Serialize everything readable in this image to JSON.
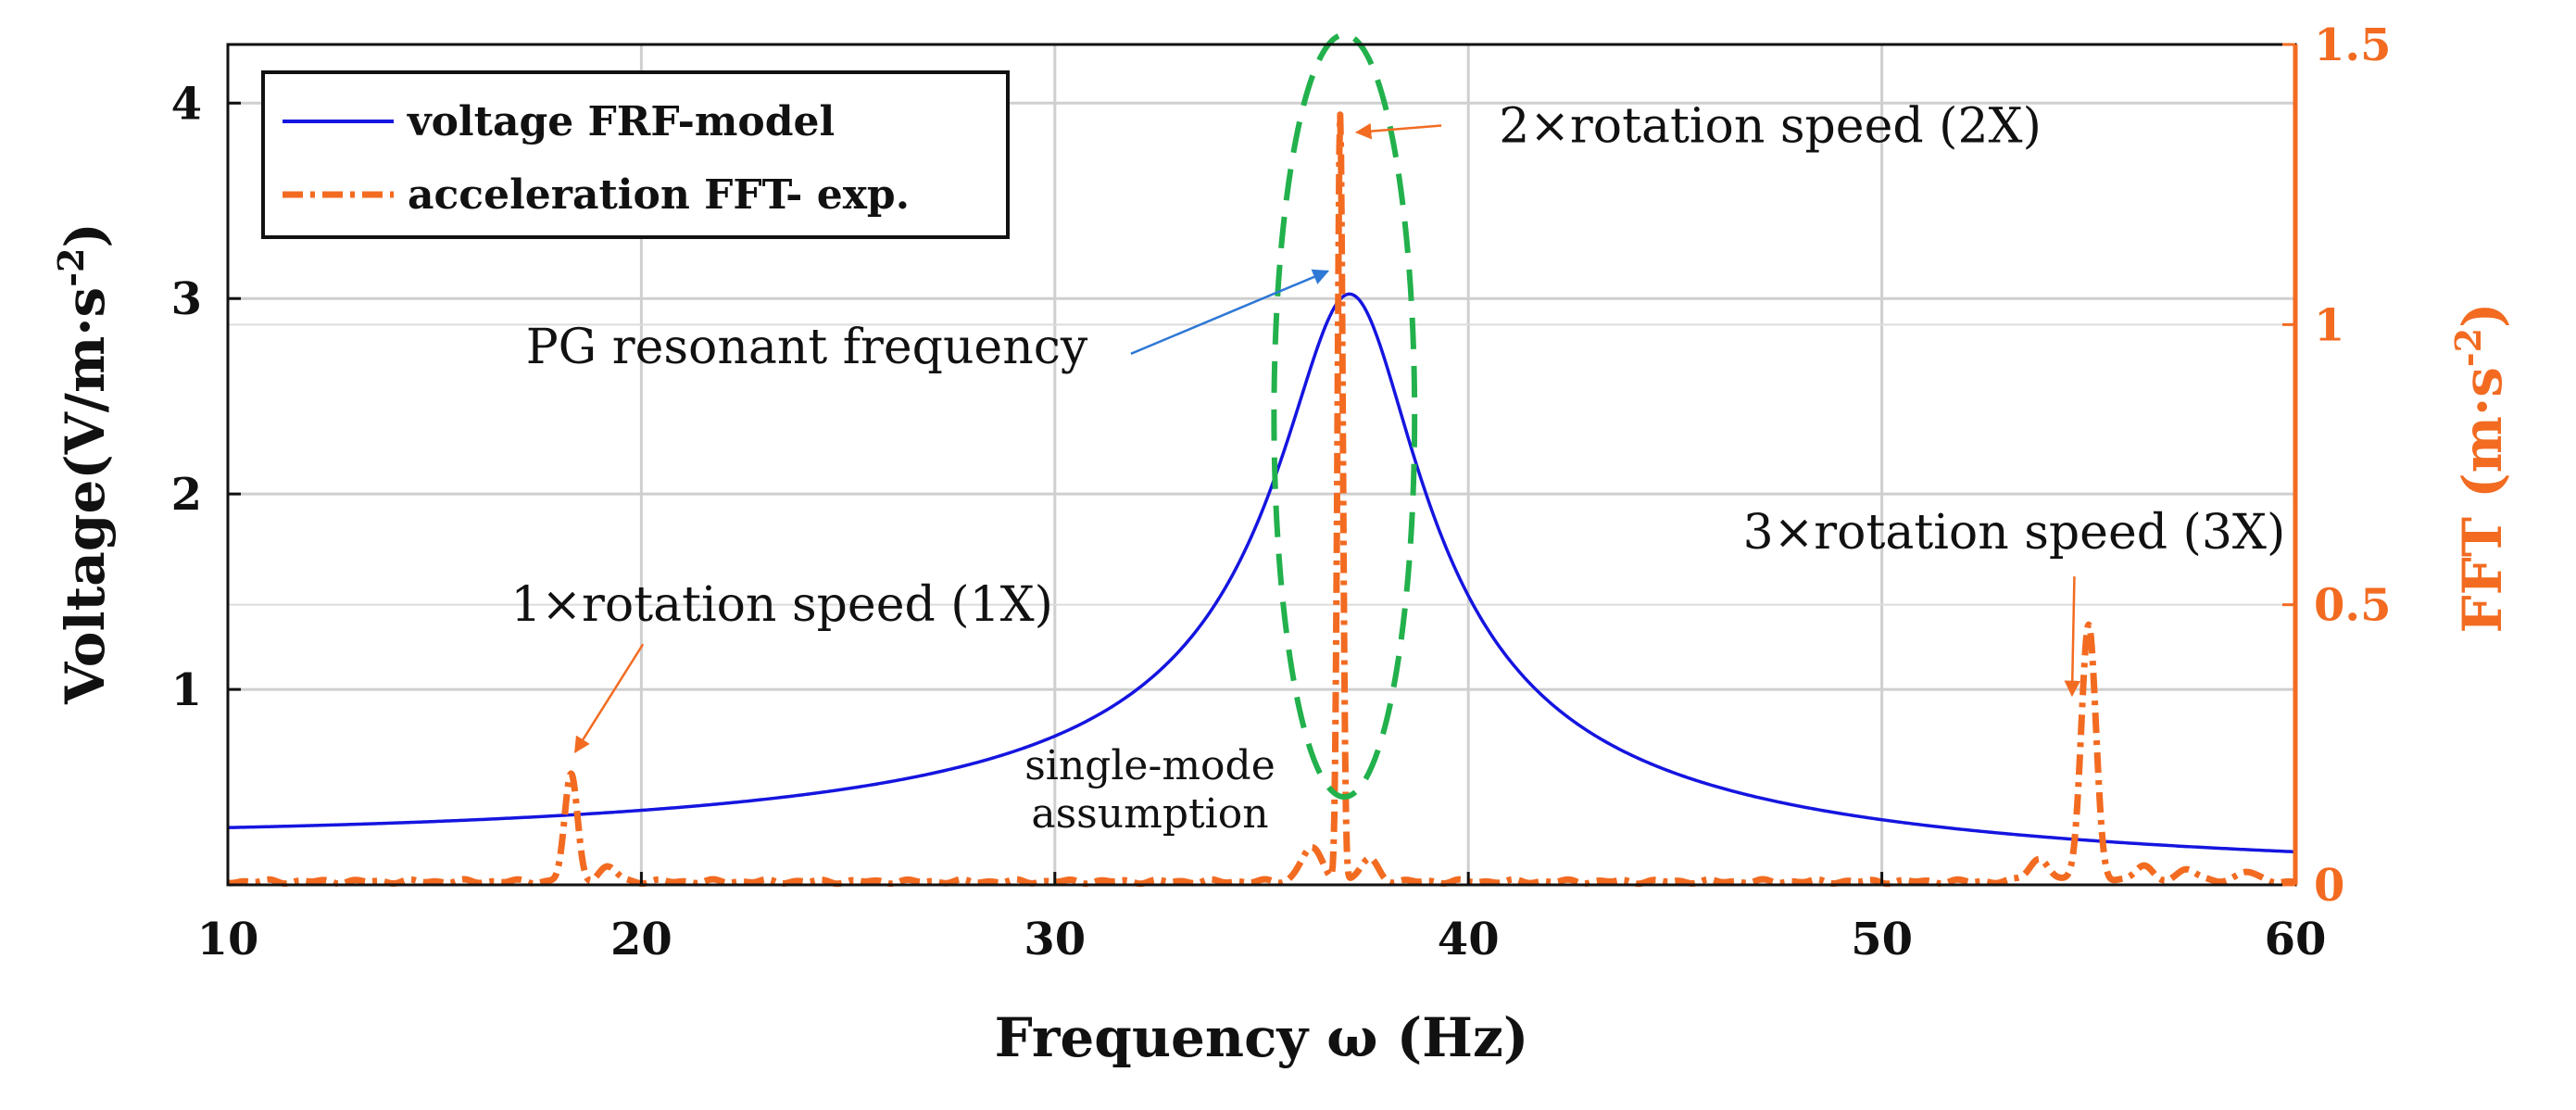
{
  "chart_data": {
    "type": "line",
    "xlabel": "Frequency ω (Hz)",
    "xlim": [
      10,
      60
    ],
    "xticks": [
      10,
      20,
      30,
      40,
      50,
      60
    ],
    "y_left": {
      "label": "Voltage(V/m·s-2)",
      "label_main": "Voltage(V/m·s",
      "label_sup": "-2",
      "label_close": ")",
      "lim": [
        0,
        4.3
      ],
      "ticks": [
        1,
        2,
        3,
        4
      ],
      "color": "#111111"
    },
    "y_right": {
      "label": "FFT (m·s-2)",
      "label_main": "FFT (m·s",
      "label_sup": "-2",
      "label_close": ")",
      "lim": [
        0,
        1.5
      ],
      "ticks": [
        0,
        0.5,
        1,
        1.5
      ],
      "tick_labels": [
        "0",
        "0.5",
        "1",
        "1.5"
      ],
      "color": "#F26B21"
    },
    "grid": true,
    "legend_position": "top-left",
    "series": [
      {
        "name": "voltage FRF-model",
        "axis": "left",
        "color": "#1515E0",
        "style": "solid",
        "model": {
          "type": "single-mode FRF",
          "peak_frequency": 37.2,
          "peak_value": 3.02,
          "damping_ratio": 0.045
        }
      },
      {
        "name": "acceleration FFT- exp.",
        "axis": "right",
        "color": "#F26B21",
        "style": "dash-dot",
        "baseline": 0.006,
        "peaks": [
          {
            "x": 18.3,
            "y": 0.19,
            "width": 0.22,
            "label": "1X"
          },
          {
            "x": 36.9,
            "y": 1.37,
            "width": 0.09,
            "label": "2X"
          },
          {
            "x": 55.0,
            "y": 0.46,
            "width": 0.25,
            "label": "3X"
          }
        ],
        "minor_peaks": [
          {
            "x": 36.2,
            "y": 0.06,
            "width": 0.35
          },
          {
            "x": 37.6,
            "y": 0.04,
            "width": 0.3
          },
          {
            "x": 53.8,
            "y": 0.04,
            "width": 0.35
          },
          {
            "x": 56.3,
            "y": 0.03,
            "width": 0.3
          },
          {
            "x": 57.4,
            "y": 0.025,
            "width": 0.3
          },
          {
            "x": 58.8,
            "y": 0.02,
            "width": 0.3
          },
          {
            "x": 19.2,
            "y": 0.025,
            "width": 0.3
          }
        ]
      }
    ],
    "ellipse": {
      "x_center": 37.0,
      "y_center_left": 2.4,
      "x_half_width": 1.7,
      "y_half_height_left": 1.95,
      "color": "#22B14C"
    },
    "annotations": [
      {
        "text": "1×rotation speed (1X)",
        "x_text": 23.4,
        "y_text_left": 1.35,
        "arrow_to_x": 18.4,
        "arrow_to_y_left": 0.68,
        "color": "#F26B21"
      },
      {
        "text": "2×rotation speed (2X)",
        "x_text": 47.3,
        "y_text_left": 3.8,
        "arrow_to_x": 37.3,
        "arrow_to_y_left": 3.85,
        "color": "#F26B21"
      },
      {
        "text": "3×rotation speed (3X)",
        "x_text": 53.2,
        "y_text_left": 1.72,
        "arrow_to_x": 54.6,
        "arrow_to_y_left": 0.97,
        "color": "#F26B21"
      },
      {
        "text": "PG resonant frequency",
        "x_text": 24.0,
        "y_text_left": 2.67,
        "arrow_to_x": 36.6,
        "arrow_to_y_left": 3.14,
        "color": "#2E78D6"
      },
      {
        "text_lines": [
          "single-mode",
          "assumption"
        ],
        "x_text": 32.3,
        "y_text_left": 0.54,
        "color": "#111111"
      }
    ]
  }
}
